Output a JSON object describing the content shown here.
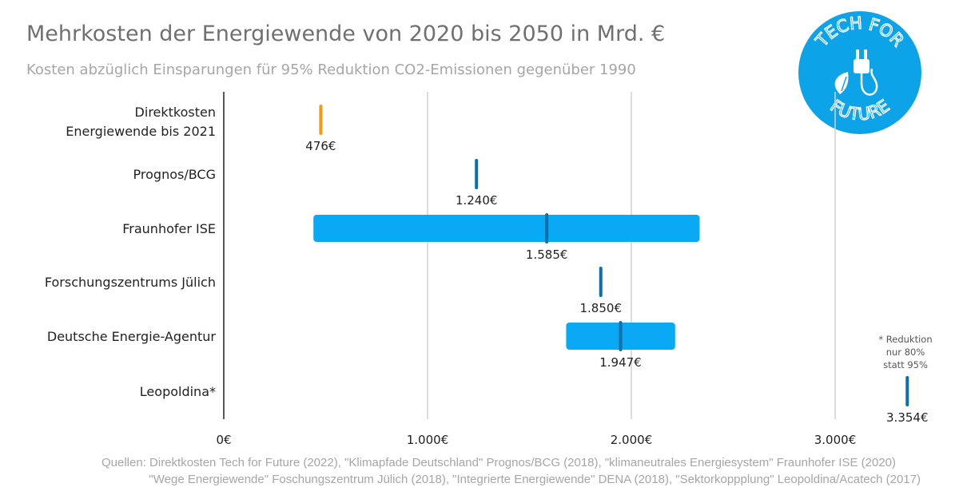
{
  "chart_data": {
    "type": "range-bar",
    "title": "Mehrkosten der Energiewende von 2020 bis 2050 in Mrd. €",
    "subtitle": "Kosten abzüglich Einsparungen für 95% Reduktion CO2-Emissionen gegenüber 1990",
    "xlim": [
      0,
      3354
    ],
    "xticks": [
      {
        "value": 0,
        "label": "0€"
      },
      {
        "value": 1000,
        "label": "1.000€"
      },
      {
        "value": 2000,
        "label": "2.000€"
      },
      {
        "value": 3000,
        "label": "3.000€"
      }
    ],
    "grid": true,
    "rows": [
      {
        "label_lines": [
          "Direktkosten",
          "Energiewende bis 2021"
        ],
        "value": 476,
        "value_label": "476€",
        "color": "#f39c12"
      },
      {
        "label_lines": [
          "Prognos/BCG"
        ],
        "value": 1240,
        "value_label": "1.240€",
        "color": "#0e6fa8"
      },
      {
        "label_lines": [
          "Fraunhofer ISE"
        ],
        "value": 1585,
        "value_label": "1.585€",
        "range": [
          440,
          2335
        ],
        "color": "#0e6fa8",
        "range_color": "#09a9f5"
      },
      {
        "label_lines": [
          "Forschungszentrums Jülich"
        ],
        "value": 1850,
        "value_label": "1.850€",
        "color": "#0e6fa8"
      },
      {
        "label_lines": [
          "Deutsche Energie-Agentur"
        ],
        "value": 1947,
        "value_label": "1.947€",
        "range": [
          1680,
          2215
        ],
        "color": "#0e6fa8",
        "range_color": "#09a9f5"
      },
      {
        "label_lines": [
          "Leopoldina*"
        ],
        "value": 3354,
        "value_label": "3.354€",
        "color": "#0e6fa8"
      }
    ],
    "annotation": [
      "* Reduktion",
      "nur 80%",
      "statt 95%"
    ]
  },
  "logo": {
    "text_top": "TECH FOR",
    "text_bottom": "FUTURE",
    "color": "#0da3e8"
  },
  "sources": {
    "line1": "Quellen: Direktkosten Tech for Future (2022), \"Klimapfade Deutschland\" Prognos/BCG (2018),  \"klimaneutrales Energiesystem\" Fraunhofer ISE (2020)",
    "line2": "\"Wege Energiewende\" Foschungszentrum Jülich (2018), \"Integrierte Energiewende\" DENA (2018), \"Sektorkoppplung\" Leopoldina/Acatech (2017)"
  }
}
